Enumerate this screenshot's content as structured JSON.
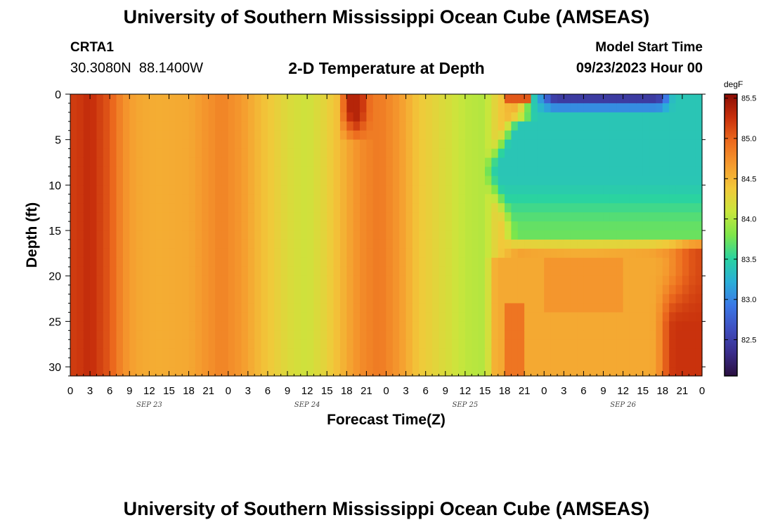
{
  "header": {
    "title": "University of Southern Mississippi Ocean Cube (AMSEAS)",
    "station_id": "CRTA1",
    "station_coords": "30.3080N  88.1400W",
    "plot_title": "2-D Temperature at Depth",
    "model_start_label": "Model Start Time",
    "model_start_value": "09/23/2023 Hour 00"
  },
  "footer": {
    "title": "University of Southern Mississippi Ocean Cube (AMSEAS)"
  },
  "chart_data": {
    "type": "heatmap",
    "title": "2-D Temperature at Depth",
    "xlabel": "Forecast Time(Z)",
    "ylabel": "Depth (ft)",
    "x_hours_from_start": [
      0,
      96
    ],
    "x_tick_step_hours": 3,
    "x_tick_labels": [
      "0",
      "3",
      "6",
      "9",
      "12",
      "15",
      "18",
      "21",
      "0",
      "3",
      "6",
      "9",
      "12",
      "15",
      "18",
      "21",
      "0",
      "3",
      "6",
      "9",
      "12",
      "15",
      "18",
      "21",
      "0",
      "3",
      "6",
      "9",
      "12",
      "15",
      "18",
      "21",
      "0"
    ],
    "date_labels": [
      {
        "label": "SEP 23",
        "hour": 12
      },
      {
        "label": "SEP 24",
        "hour": 36
      },
      {
        "label": "SEP 25",
        "hour": 60
      },
      {
        "label": "SEP 26",
        "hour": 84
      }
    ],
    "y_ticks": [
      0,
      5,
      10,
      15,
      20,
      25,
      30
    ],
    "ylim": [
      0,
      31
    ],
    "y_inverted": true,
    "colorbar": {
      "units": "degF",
      "min": 82.05,
      "max": 85.55,
      "ticks": [
        "82.5",
        "83.0",
        "83.5",
        "84.0",
        "84.5",
        "85.0",
        "85.5"
      ],
      "colors": [
        "#2a0f3f",
        "#3a2d8c",
        "#3f4fc0",
        "#3b78e6",
        "#2aaed8",
        "#2ad3a0",
        "#7ee64a",
        "#c9e63c",
        "#f2c83a",
        "#f59a2e",
        "#ec6a1e",
        "#c8300c",
        "#8a0c04"
      ]
    },
    "values_note_hidden": "",
    "time_profile_degF": [
      {
        "hour": 0,
        "value": 85.2
      },
      {
        "hour": 1,
        "value": 85.2
      },
      {
        "hour": 3,
        "value": 85.3
      },
      {
        "hour": 6,
        "value": 85.05
      },
      {
        "hour": 8,
        "value": 84.75
      },
      {
        "hour": 10,
        "value": 84.6
      },
      {
        "hour": 13,
        "value": 84.55
      },
      {
        "hour": 18,
        "value": 84.58
      },
      {
        "hour": 20,
        "value": 84.68
      },
      {
        "hour": 23,
        "value": 84.82
      },
      {
        "hour": 26,
        "value": 84.68
      },
      {
        "hour": 29,
        "value": 84.45
      },
      {
        "hour": 33,
        "value": 84.22
      },
      {
        "hour": 36,
        "value": 84.12
      },
      {
        "hour": 39,
        "value": 84.3
      },
      {
        "hour": 44,
        "value": 84.75
      },
      {
        "hour": 47,
        "value": 84.88
      },
      {
        "hour": 50,
        "value": 84.68
      },
      {
        "hour": 53,
        "value": 84.38
      },
      {
        "hour": 57,
        "value": 84.2
      },
      {
        "hour": 60,
        "value": 84.05
      },
      {
        "hour": 63,
        "value": 84.0
      },
      {
        "hour": 65,
        "value": 84.35
      },
      {
        "hour": 68,
        "value": 84.62
      },
      {
        "hour": 72,
        "value": 84.58
      },
      {
        "hour": 78,
        "value": 84.55
      },
      {
        "hour": 84,
        "value": 84.58
      },
      {
        "hour": 88,
        "value": 84.6
      },
      {
        "hour": 91,
        "value": 84.72
      },
      {
        "hour": 94,
        "value": 85.05
      },
      {
        "hour": 96,
        "value": 85.15
      }
    ],
    "features_degF": [
      {
        "name": "surface warm patch",
        "hours": [
          40.5,
          46
        ],
        "depth_ft": [
          0,
          5.5
        ],
        "value": 85.35
      },
      {
        "name": "surface warm streak",
        "hours": [
          66,
          70
        ],
        "depth_ft": [
          0,
          0.8
        ],
        "value": 85.05
      },
      {
        "name": "upper cool layer",
        "hours": [
          64,
          96
        ],
        "depth_ft": [
          0,
          15.5
        ],
        "value": 83.4
      },
      {
        "name": "cold core",
        "hours": [
          73,
          90
        ],
        "depth_ft": [
          0,
          1.5
        ],
        "value": 82.35
      },
      {
        "name": "thermocline transition",
        "hours": [
          63,
          96
        ],
        "depth_ft": [
          15,
          19
        ],
        "value": 84.1
      },
      {
        "name": "deep warm corner",
        "hours": [
          88,
          96
        ],
        "depth_ft": [
          20,
          31
        ],
        "value": 85.25
      }
    ]
  }
}
